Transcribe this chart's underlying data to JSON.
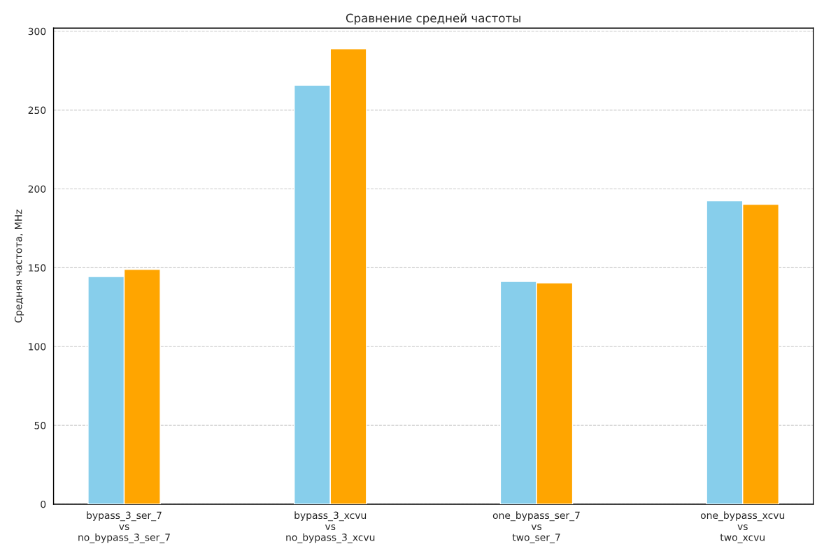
{
  "chart_data": {
    "type": "bar",
    "title": "Сравнение средней частоты",
    "ylabel": "Средняя частота, MHz",
    "categories": [
      "bypass_3_ser_7\nvs\nno_bypass_3_ser_7",
      "bypass_3_xcvu\nvs\nno_bypass_3_xcvu",
      "one_bypass_ser_7\nvs\ntwo_ser_7",
      "one_bypass_xcvu\nvs\ntwo_xcvu"
    ],
    "series": [
      {
        "color": "#87ceeb",
        "values": [
          144.4,
          265.8,
          141.3,
          192.4
        ]
      },
      {
        "color": "#ffa500",
        "values": [
          148.9,
          288.9,
          140.4,
          190.2
        ]
      }
    ],
    "ylim": [
      0,
      302
    ],
    "yticks": [
      0,
      50,
      100,
      150,
      200,
      250,
      300
    ],
    "grid": "y",
    "legend": false
  }
}
